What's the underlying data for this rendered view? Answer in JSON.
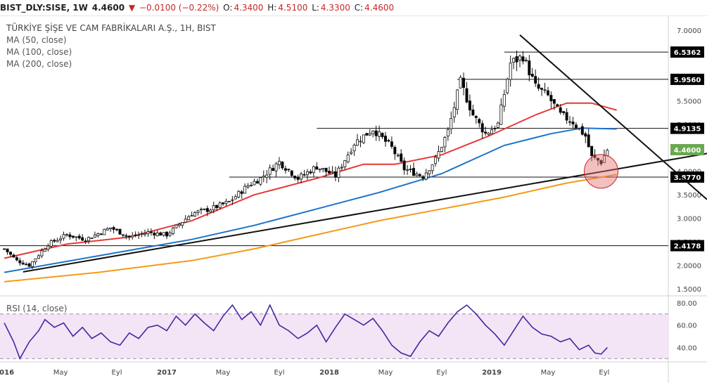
{
  "header": {
    "symbol": "BIST_DLY:SISE, 1W",
    "last": "4.4600",
    "arrow": "▼",
    "change": "−0.0100 (−0.22%)",
    "o_label": "O:",
    "o": "4.3400",
    "h_label": "H:",
    "h": "4.5100",
    "l_label": "L:",
    "l": "4.3300",
    "c_label": "C:",
    "c": "4.4600"
  },
  "legend": {
    "title": "TÜRKİYE ŞİŞE VE CAM FABRİKALARI A.Ş., 1H, BIST",
    "ma50": "MA (50, close)",
    "ma100": "MA (100, close)",
    "ma200": "MA (200, close)"
  },
  "rsi_label": "RSI (14, close)",
  "colors": {
    "up": "#ffffff",
    "down": "#000000",
    "ma50": "#e53935",
    "ma100": "#1e73c8",
    "ma200": "#f59a16",
    "rsi": "#4527a0",
    "rsi_band": "#f3e5f5",
    "price_badge": "#6aa84f",
    "level_badge": "#000000"
  },
  "chart_data": {
    "type": "candlestick",
    "price_axis": {
      "ylim": [
        1.35,
        7.3
      ],
      "ticks": [
        "1.5000",
        "2.0000",
        "2.5000",
        "3.0000",
        "3.5000",
        "4.0000",
        "4.5000",
        "5.0000",
        "5.5000",
        "6.0000",
        "6.5000",
        "7.0000"
      ]
    },
    "x_axis": {
      "labels": [
        "2016",
        "May",
        "Eyl",
        "2017",
        "May",
        "Eyl",
        "2018",
        "May",
        "Eyl",
        "2019",
        "May",
        "Eyl"
      ],
      "label_weeks": [
        0,
        18,
        36,
        52,
        70,
        88,
        104,
        122,
        140,
        156,
        174,
        192
      ]
    },
    "horizontal_levels": [
      {
        "value": 6.5362,
        "label": "6.5362"
      },
      {
        "value": 5.956,
        "label": "5.9560"
      },
      {
        "value": 4.9135,
        "label": "4.9135"
      },
      {
        "value": 3.877,
        "label": "3.8770"
      },
      {
        "value": 2.4178,
        "label": "2.4178"
      }
    ],
    "last_price": {
      "value": 4.46,
      "label": "4.4600"
    },
    "trendlines": [
      {
        "name": "support",
        "from": {
          "week": 6,
          "price": 1.86
        },
        "to": {
          "week": 209,
          "price": 4.38
        }
      },
      {
        "name": "resistance",
        "from": {
          "week": 165,
          "price": 6.9
        },
        "to": {
          "week": 209,
          "price": 3.4
        }
      }
    ],
    "highlight_circle": {
      "week": 191,
      "price": 4.0
    },
    "ohlc_anchors": [
      {
        "week": 0,
        "close": 2.35
      },
      {
        "week": 4,
        "close": 2.1
      },
      {
        "week": 8,
        "close": 2.0
      },
      {
        "week": 14,
        "close": 2.45
      },
      {
        "week": 20,
        "close": 2.65
      },
      {
        "week": 26,
        "close": 2.55
      },
      {
        "week": 34,
        "close": 2.8
      },
      {
        "week": 40,
        "close": 2.6
      },
      {
        "week": 46,
        "close": 2.7
      },
      {
        "week": 52,
        "close": 2.65
      },
      {
        "week": 60,
        "close": 3.1
      },
      {
        "week": 66,
        "close": 3.2
      },
      {
        "week": 72,
        "close": 3.35
      },
      {
        "week": 78,
        "close": 3.7
      },
      {
        "week": 82,
        "close": 3.85
      },
      {
        "week": 88,
        "close": 4.2
      },
      {
        "week": 94,
        "close": 3.85
      },
      {
        "week": 100,
        "close": 4.1
      },
      {
        "week": 106,
        "close": 3.9
      },
      {
        "week": 112,
        "close": 4.6
      },
      {
        "week": 118,
        "close": 4.9
      },
      {
        "week": 124,
        "close": 4.5
      },
      {
        "week": 128,
        "close": 4.05
      },
      {
        "week": 134,
        "close": 3.9
      },
      {
        "week": 138,
        "close": 4.25
      },
      {
        "week": 142,
        "close": 4.85
      },
      {
        "week": 146,
        "close": 5.9
      },
      {
        "week": 150,
        "close": 5.2
      },
      {
        "week": 154,
        "close": 4.8
      },
      {
        "week": 158,
        "close": 5.0
      },
      {
        "week": 162,
        "close": 6.3
      },
      {
        "week": 166,
        "close": 6.45
      },
      {
        "week": 170,
        "close": 5.8
      },
      {
        "week": 174,
        "close": 5.6
      },
      {
        "week": 178,
        "close": 5.2
      },
      {
        "week": 182,
        "close": 5.05
      },
      {
        "week": 186,
        "close": 4.75
      },
      {
        "week": 188,
        "close": 4.3
      },
      {
        "week": 191,
        "close": 4.2
      },
      {
        "week": 193,
        "close": 4.46
      }
    ],
    "moving_averages": [
      {
        "name": "MA (50, close)",
        "color": "#e53935",
        "points": [
          [
            0,
            2.15
          ],
          [
            20,
            2.45
          ],
          [
            40,
            2.6
          ],
          [
            60,
            2.95
          ],
          [
            80,
            3.5
          ],
          [
            100,
            3.85
          ],
          [
            115,
            4.15
          ],
          [
            125,
            4.15
          ],
          [
            140,
            4.35
          ],
          [
            155,
            4.75
          ],
          [
            170,
            5.2
          ],
          [
            180,
            5.45
          ],
          [
            188,
            5.45
          ],
          [
            196,
            5.3
          ]
        ]
      },
      {
        "name": "MA (100, close)",
        "color": "#1e73c8",
        "points": [
          [
            0,
            1.85
          ],
          [
            30,
            2.2
          ],
          [
            60,
            2.55
          ],
          [
            80,
            2.85
          ],
          [
            100,
            3.2
          ],
          [
            120,
            3.55
          ],
          [
            140,
            3.95
          ],
          [
            160,
            4.55
          ],
          [
            175,
            4.8
          ],
          [
            185,
            4.92
          ],
          [
            196,
            4.9
          ]
        ]
      },
      {
        "name": "MA (200, close)",
        "color": "#f59a16",
        "points": [
          [
            0,
            1.65
          ],
          [
            30,
            1.85
          ],
          [
            60,
            2.1
          ],
          [
            80,
            2.35
          ],
          [
            100,
            2.65
          ],
          [
            120,
            2.95
          ],
          [
            140,
            3.2
          ],
          [
            160,
            3.45
          ],
          [
            180,
            3.75
          ],
          [
            196,
            3.93
          ]
        ]
      }
    ],
    "rsi": {
      "name": "RSI (14, close)",
      "ylim": [
        27,
        85
      ],
      "ticks": [
        "40.00",
        "60.00",
        "80.00"
      ],
      "band": [
        30,
        70
      ],
      "anchors": [
        [
          0,
          62
        ],
        [
          3,
          45
        ],
        [
          5,
          30
        ],
        [
          8,
          45
        ],
        [
          11,
          55
        ],
        [
          13,
          65
        ],
        [
          16,
          58
        ],
        [
          19,
          62
        ],
        [
          22,
          50
        ],
        [
          25,
          58
        ],
        [
          28,
          48
        ],
        [
          31,
          53
        ],
        [
          34,
          45
        ],
        [
          37,
          42
        ],
        [
          40,
          53
        ],
        [
          43,
          48
        ],
        [
          46,
          58
        ],
        [
          49,
          60
        ],
        [
          52,
          55
        ],
        [
          55,
          68
        ],
        [
          58,
          60
        ],
        [
          61,
          70
        ],
        [
          64,
          62
        ],
        [
          67,
          55
        ],
        [
          70,
          68
        ],
        [
          73,
          78
        ],
        [
          76,
          65
        ],
        [
          79,
          72
        ],
        [
          82,
          60
        ],
        [
          85,
          78
        ],
        [
          88,
          60
        ],
        [
          91,
          55
        ],
        [
          94,
          48
        ],
        [
          97,
          53
        ],
        [
          100,
          60
        ],
        [
          103,
          45
        ],
        [
          106,
          58
        ],
        [
          109,
          70
        ],
        [
          112,
          65
        ],
        [
          115,
          60
        ],
        [
          118,
          66
        ],
        [
          121,
          55
        ],
        [
          124,
          42
        ],
        [
          127,
          35
        ],
        [
          130,
          32
        ],
        [
          133,
          45
        ],
        [
          136,
          55
        ],
        [
          139,
          50
        ],
        [
          142,
          62
        ],
        [
          145,
          72
        ],
        [
          148,
          78
        ],
        [
          151,
          70
        ],
        [
          154,
          60
        ],
        [
          157,
          52
        ],
        [
          160,
          42
        ],
        [
          163,
          55
        ],
        [
          166,
          68
        ],
        [
          169,
          58
        ],
        [
          172,
          52
        ],
        [
          175,
          50
        ],
        [
          178,
          45
        ],
        [
          181,
          48
        ],
        [
          184,
          38
        ],
        [
          187,
          42
        ],
        [
          189,
          35
        ],
        [
          191,
          34
        ],
        [
          193,
          40
        ]
      ]
    }
  }
}
